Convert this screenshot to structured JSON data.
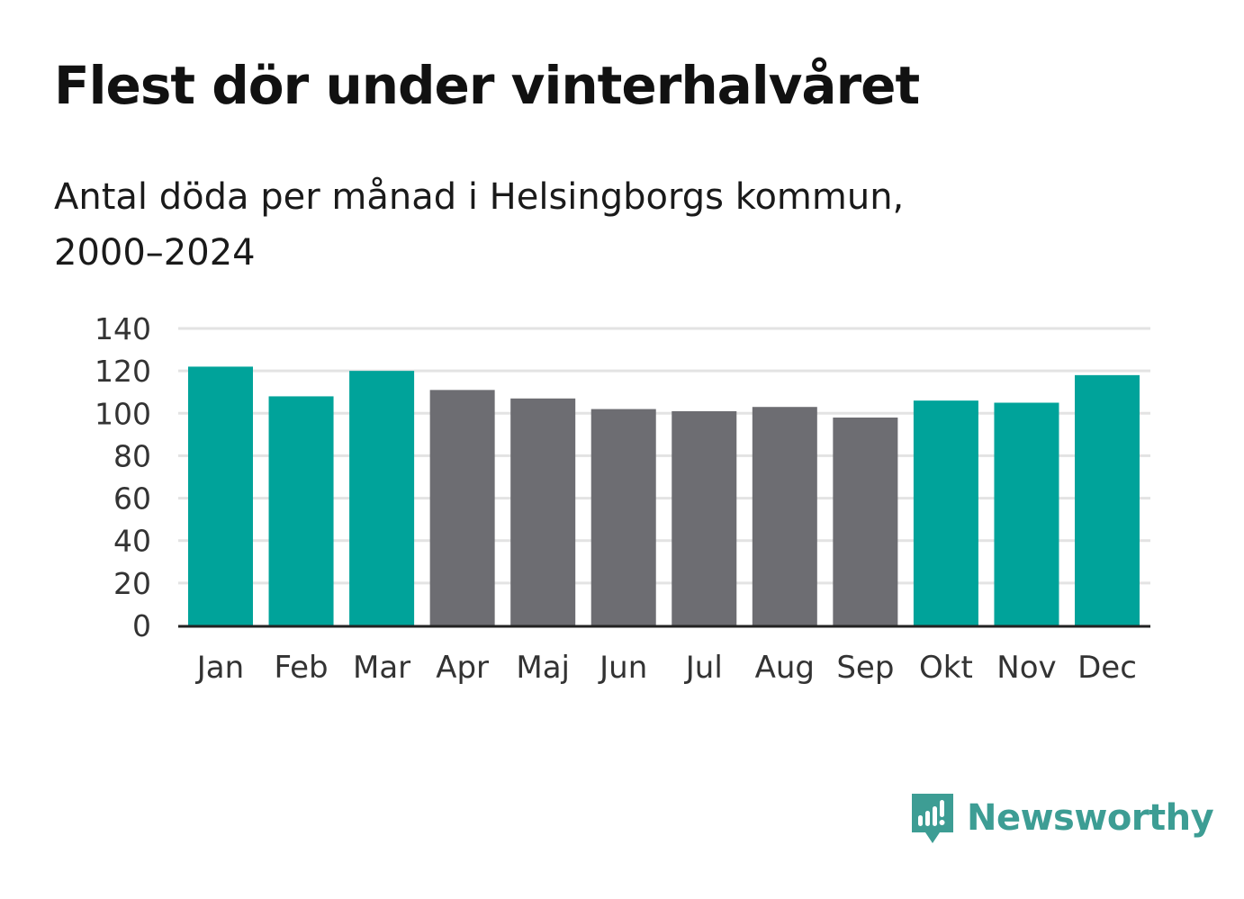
{
  "header": {
    "title": "Flest dör under vinterhalvåret",
    "subtitle_line1": "Antal döda per månad i Helsingborgs kommun,",
    "subtitle_line2": "2000–2024"
  },
  "colors": {
    "highlight": "#00a39a",
    "neutral": "#6d6d72",
    "grid": "#e3e3e3",
    "axis": "#222222",
    "brand": "#3d9d94"
  },
  "chart_data": {
    "type": "bar",
    "title": "Flest dör under vinterhalvåret",
    "subtitle": "Antal döda per månad i Helsingborgs kommun, 2000–2024",
    "xlabel": "",
    "ylabel": "",
    "categories": [
      "Jan",
      "Feb",
      "Mar",
      "Apr",
      "Maj",
      "Jun",
      "Jul",
      "Aug",
      "Sep",
      "Okt",
      "Nov",
      "Dec"
    ],
    "values": [
      122,
      108,
      120,
      111,
      107,
      102,
      101,
      103,
      98,
      106,
      105,
      118
    ],
    "highlighted": [
      true,
      true,
      true,
      false,
      false,
      false,
      false,
      false,
      false,
      true,
      true,
      true
    ],
    "yticks": [
      0,
      20,
      40,
      60,
      80,
      100,
      120,
      140
    ],
    "ylim": [
      0,
      140
    ],
    "grid": true
  },
  "brand": {
    "name": "Newsworthy",
    "icon": "newsworthy-logo-icon"
  }
}
